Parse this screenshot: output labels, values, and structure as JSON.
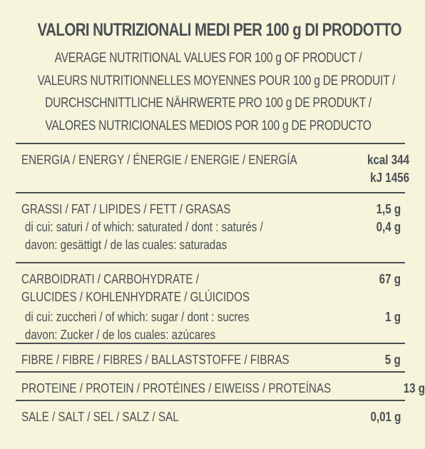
{
  "header": {
    "title": "VALORI NUTRIZIONALI MEDI PER 100 g DI PRODOTTO",
    "lines": [
      "AVERAGE NUTRITIONAL VALUES FOR 100 g OF PRODUCT /",
      "VALEURS NUTRITIONNELLES MOYENNES POUR 100 g DE PRODUIT /",
      "DURCHSCHNITTLICHE NÄHRWERTE PRO 100 g DE PRODUKT /",
      "VALORES NUTRICIONALES MEDIOS POR 100 g DE PRODUCTO"
    ]
  },
  "rows": {
    "energy": {
      "label": "ENERGIA / ENERGY / ÉNERGIE / ENERGIE / ENERGÍA",
      "kcal": "kcal 344",
      "kj": "kJ 1456"
    },
    "fat": {
      "label": "GRASSI / FAT / LIPIDES / FETT / GRASAS",
      "sub1": "di cui: saturi / of which: saturated / dont : saturés /",
      "sub2": "davon: gesättigt / de las cuales: saturadas",
      "value": "1,5 g",
      "sub_value": "0,4 g"
    },
    "carbs": {
      "label1": "CARBOIDRATI / CARBOHYDRATE /",
      "label2": "GLUCIDES / KOHLENHYDRATE / GLÚICIDOS",
      "sub1": "di cui: zuccheri / of which: sugar / dont : sucres",
      "sub2": "davon: Zucker / de los cuales: azúcares",
      "value": "67 g",
      "sub_value": "1 g"
    },
    "fibre": {
      "label": "FIBRE / FIBRE / FIBRES / BALLASTSTOFFE / FIBRAS",
      "value": "5 g"
    },
    "protein": {
      "label": "PROTEINE / PROTEIN / PROTÉINES / EIWEISS / PROTEÍNAS",
      "value": "13 g"
    },
    "salt": {
      "label": "SALE / SALT / SEL / SALZ / SAL",
      "value": "0,01 g"
    }
  }
}
